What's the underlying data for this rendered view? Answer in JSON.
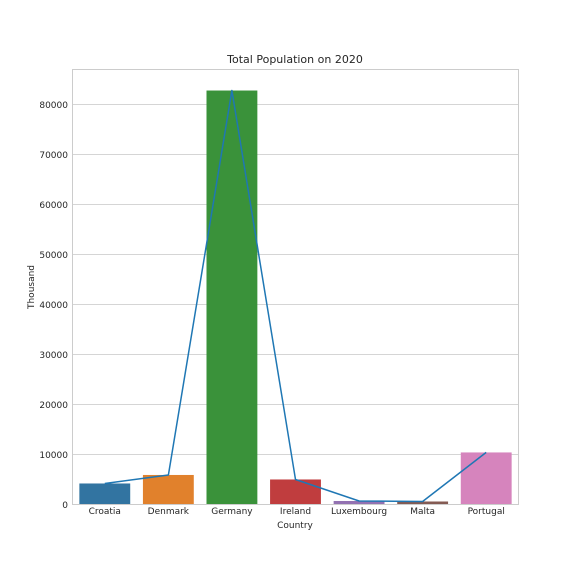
{
  "chart_data": {
    "type": "bar",
    "title": "Total Population on 2020",
    "xlabel": "Country",
    "ylabel": "Thousand",
    "categories": [
      "Croatia",
      "Denmark",
      "Germany",
      "Ireland",
      "Luxembourg",
      "Malta",
      "Portugal"
    ],
    "values": [
      4100,
      5800,
      82600,
      4900,
      600,
      500,
      10300
    ],
    "bar_colors": [
      "#3274a1",
      "#e1812c",
      "#3a923a",
      "#c03d3e",
      "#9372b2",
      "#845b53",
      "#d684bd"
    ],
    "line": {
      "values": [
        4100,
        5800,
        82600,
        4900,
        600,
        500,
        10300
      ],
      "color": "#1f77b4"
    },
    "yticks": [
      0,
      10000,
      20000,
      30000,
      40000,
      50000,
      60000,
      70000,
      80000
    ],
    "ylim": [
      0,
      86700
    ],
    "grid": true,
    "grid_axis": "y"
  }
}
